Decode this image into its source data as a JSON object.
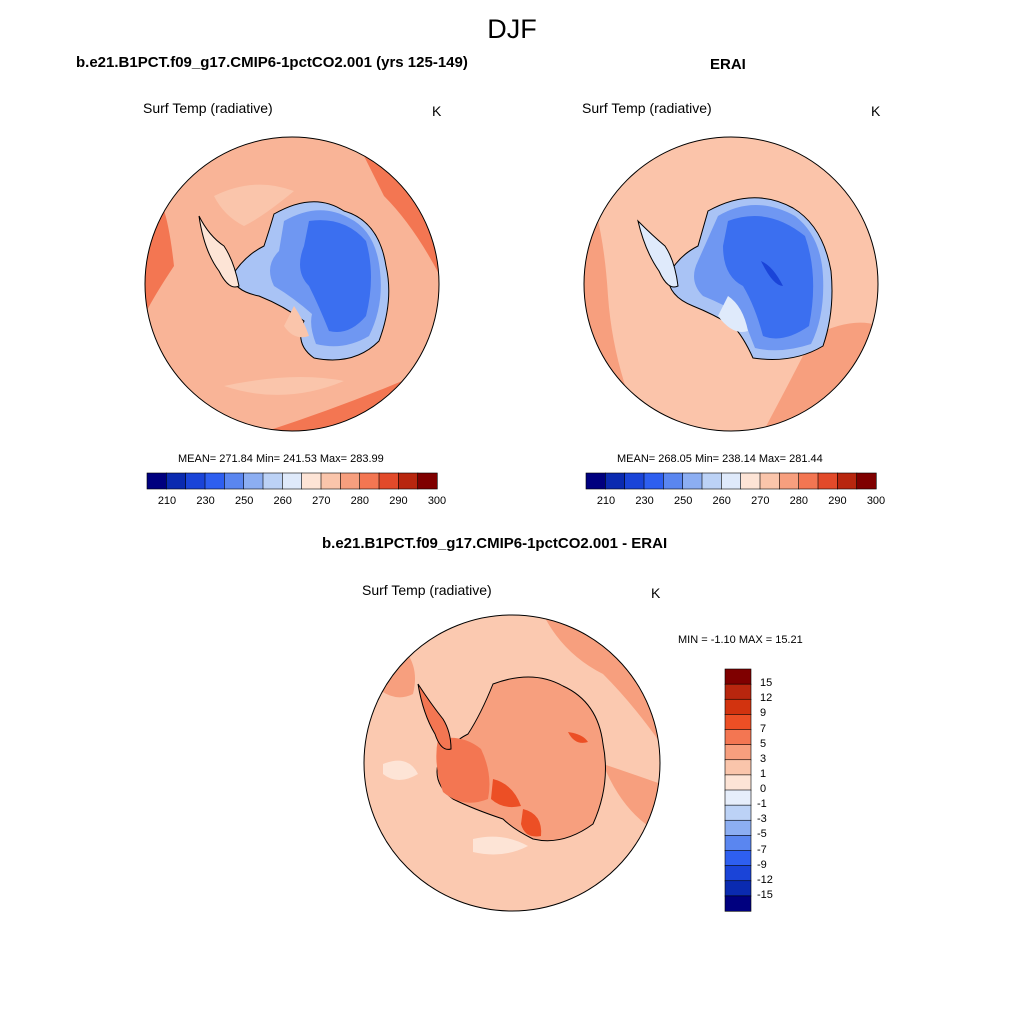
{
  "page": {
    "season_title": "DJF"
  },
  "colors": {
    "abs_palette": [
      "#00007f",
      "#0a2ab0",
      "#1a44d8",
      "#2e5ff0",
      "#5a86f0",
      "#8caef2",
      "#bcd2f6",
      "#dfeafb",
      "#fde4d6",
      "#fac5ab",
      "#f79f7e",
      "#f37652",
      "#e24a2a",
      "#b8260e",
      "#7f0000"
    ],
    "diff_palette": [
      "#00007f",
      "#0a2ab0",
      "#1a44d8",
      "#2e5ff0",
      "#5a86f0",
      "#8caef2",
      "#bcd2f6",
      "#e6eefb",
      "#fde4d6",
      "#fac5ab",
      "#f79f7e",
      "#f37652",
      "#ec4f25",
      "#d2330f",
      "#b8260e",
      "#7f0000"
    ],
    "ocean_model": "#f9b497",
    "ocean_obs": "#fbc4aa",
    "land_cold": "#3b6ff0",
    "land_mid": "#6f97f2",
    "land_edge": "#a9c3f5",
    "diff_bg": "#fbc9b0",
    "diff_land": "#f0784e"
  },
  "chart_data": [
    {
      "type": "heatmap",
      "panel": "model",
      "title": "b.e21.B1PCT.f09_g17.CMIP6-1pctCO2.001 (yrs 125-149)",
      "field": "Surf Temp (radiative)",
      "units": "K",
      "stats": "MEAN= 271.84  Min= 241.53  Max= 283.99",
      "mean": 271.84,
      "min": 241.53,
      "max": 283.99,
      "colorbar_ticks": [
        "210",
        "230",
        "250",
        "260",
        "270",
        "280",
        "290",
        "300"
      ]
    },
    {
      "type": "heatmap",
      "panel": "obs",
      "title": "ERAI",
      "field": "Surf Temp (radiative)",
      "units": "K",
      "stats": "MEAN= 268.05  Min= 238.14  Max= 281.44",
      "mean": 268.05,
      "min": 238.14,
      "max": 281.44,
      "colorbar_ticks": [
        "210",
        "230",
        "250",
        "260",
        "270",
        "280",
        "290",
        "300"
      ]
    },
    {
      "type": "heatmap",
      "panel": "difference",
      "title": "b.e21.B1PCT.f09_g17.CMIP6-1pctCO2.001 - ERAI",
      "field": "Surf Temp (radiative)",
      "units": "K",
      "stats": "MIN =  -1.10 MAX =  15.21",
      "min": -1.1,
      "max": 15.21,
      "colorbar_ticks": [
        "15",
        "12",
        "9",
        "7",
        "5",
        "3",
        "1",
        "0",
        "-1",
        "-3",
        "-5",
        "-7",
        "-9",
        "-12",
        "-15"
      ]
    }
  ]
}
